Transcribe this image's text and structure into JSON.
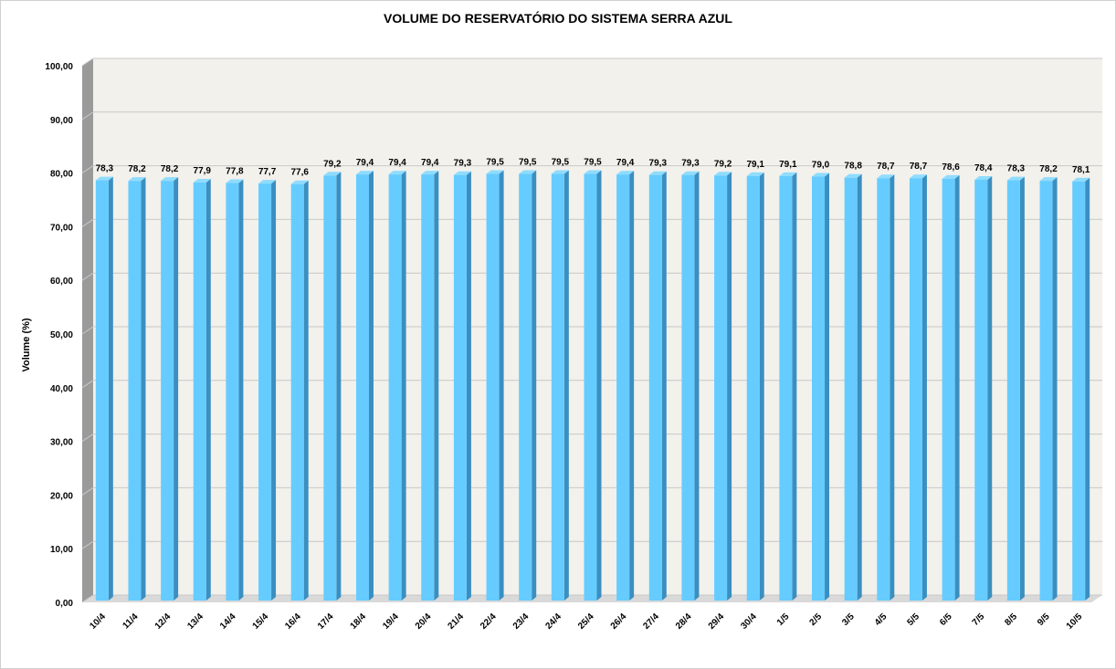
{
  "chart_data": {
    "type": "bar",
    "title": "VOLUME DO RESERVATÓRIO DO SISTEMA SERRA AZUL",
    "xlabel": "",
    "ylabel": "Volume (%)",
    "ylim": [
      0,
      100
    ],
    "y_ticks": [
      "0,00",
      "10,00",
      "20,00",
      "30,00",
      "40,00",
      "50,00",
      "60,00",
      "70,00",
      "80,00",
      "90,00",
      "100,00"
    ],
    "categories": [
      "10/4",
      "11/4",
      "12/4",
      "13/4",
      "14/4",
      "15/4",
      "16/4",
      "17/4",
      "18/4",
      "19/4",
      "20/4",
      "21/4",
      "22/4",
      "23/4",
      "24/4",
      "25/4",
      "26/4",
      "27/4",
      "28/4",
      "29/4",
      "30/4",
      "1/5",
      "2/5",
      "3/5",
      "4/5",
      "5/5",
      "6/5",
      "7/5",
      "8/5",
      "9/5",
      "10/5"
    ],
    "values": [
      78.3,
      78.2,
      78.2,
      77.9,
      77.8,
      77.7,
      77.6,
      79.2,
      79.4,
      79.4,
      79.4,
      79.3,
      79.5,
      79.5,
      79.5,
      79.5,
      79.4,
      79.3,
      79.3,
      79.2,
      79.1,
      79.1,
      79.0,
      78.8,
      78.7,
      78.7,
      78.6,
      78.4,
      78.3,
      78.2,
      78.1
    ],
    "data_labels": [
      "78,3",
      "78,2",
      "78,2",
      "77,9",
      "77,8",
      "77,7",
      "77,6",
      "79,2",
      "79,4",
      "79,4",
      "79,4",
      "79,3",
      "79,5",
      "79,5",
      "79,5",
      "79,5",
      "79,4",
      "79,3",
      "79,3",
      "79,2",
      "79,1",
      "79,1",
      "79,0",
      "78,8",
      "78,7",
      "78,7",
      "78,6",
      "78,4",
      "78,3",
      "78,2",
      "78,1"
    ],
    "grid": true,
    "legend": "none",
    "style": "3d-column",
    "colors": {
      "bar_front": "#66ccff",
      "bar_side": "#3a8fc0",
      "bar_top": "#8fdcff",
      "plot_back": "#f2f1ec",
      "plot_floor": "#d9d9d9",
      "plot_left_wall": "#9a9a9a",
      "gridline": "#c8c8c8"
    }
  }
}
